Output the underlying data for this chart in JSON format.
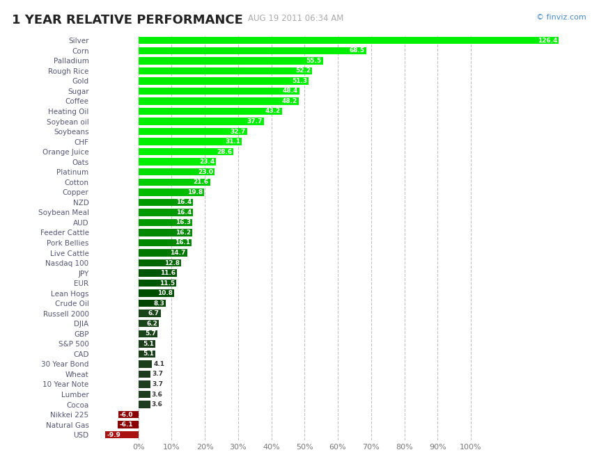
{
  "title": "1 YEAR RELATIVE PERFORMANCE",
  "subtitle": "AUG 19 2011 06:34 AM",
  "watermark": "© finviz.com",
  "categories": [
    "Silver",
    "Corn",
    "Palladium",
    "Rough Rice",
    "Gold",
    "Sugar",
    "Coffee",
    "Heating Oil",
    "Soybean oil",
    "Soybeans",
    "CHF",
    "Orange Juice",
    "Oats",
    "Platinum",
    "Cotton",
    "Copper",
    "NZD",
    "Soybean Meal",
    "AUD",
    "Feeder Cattle",
    "Pork Bellies",
    "Live Cattle",
    "Nasdaq 100",
    "JPY",
    "EUR",
    "Lean Hogs",
    "Crude Oil",
    "Russell 2000",
    "DJIA",
    "GBP",
    "S&P 500",
    "CAD",
    "30 Year Bond",
    "Wheat",
    "10 Year Note",
    "Lumber",
    "Cocoa",
    "Nikkei 225",
    "Natural Gas",
    "USD"
  ],
  "values": [
    126.4,
    68.5,
    55.5,
    52.2,
    51.3,
    48.4,
    48.2,
    43.2,
    37.7,
    32.7,
    31.1,
    28.6,
    23.4,
    23.0,
    21.6,
    19.8,
    16.4,
    16.4,
    16.3,
    16.2,
    16.1,
    14.7,
    12.8,
    11.6,
    11.5,
    10.8,
    8.3,
    6.7,
    6.2,
    5.7,
    5.1,
    5.1,
    4.1,
    3.7,
    3.7,
    3.6,
    3.6,
    -6.0,
    -6.1,
    -9.9
  ],
  "bar_colors": [
    "#00ee00",
    "#00ee00",
    "#00ee00",
    "#00ee00",
    "#00ee00",
    "#00ee00",
    "#00ee00",
    "#00ee00",
    "#00ee00",
    "#00ee00",
    "#00ee00",
    "#00ee00",
    "#00ee00",
    "#00dd00",
    "#00cc00",
    "#00bb00",
    "#009900",
    "#009900",
    "#009900",
    "#008800",
    "#008800",
    "#007700",
    "#006600",
    "#005500",
    "#005500",
    "#004f00",
    "#004500",
    "#194419",
    "#194419",
    "#194419",
    "#1a3d1a",
    "#1a3d1a",
    "#1a3d1a",
    "#1e3d1e",
    "#1e3d1e",
    "#1e3d1e",
    "#1e3d1e",
    "#8b0000",
    "#8b0000",
    "#aa1111"
  ],
  "background_color": "#ffffff",
  "grid_color": "#bbbbbb",
  "title_color": "#222222",
  "subtitle_color": "#aaaaaa",
  "label_color": "#555577",
  "bar_height": 0.72,
  "xlim_left": -14,
  "xlim_right": 132,
  "xtick_max": 100,
  "xtick_step": 10,
  "label_inside_threshold": 5.0
}
